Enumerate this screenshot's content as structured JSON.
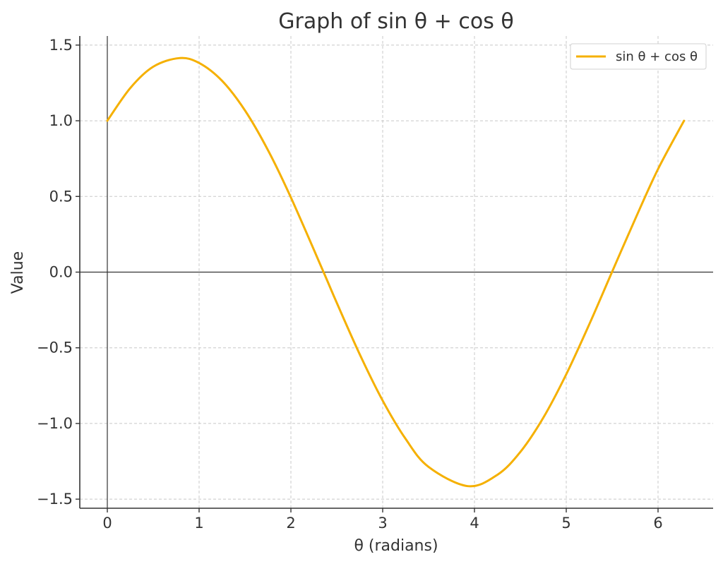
{
  "chart_data": {
    "type": "line",
    "title": "Graph of sin θ + cos θ",
    "xlabel": "θ (radians)",
    "ylabel": "Value",
    "xlim": [
      -0.3,
      6.6
    ],
    "ylim": [
      -1.56,
      1.56
    ],
    "xticks": [
      0,
      1,
      2,
      3,
      4,
      5,
      6
    ],
    "xtick_labels": [
      "0",
      "1",
      "2",
      "3",
      "4",
      "5",
      "6"
    ],
    "yticks": [
      -1.5,
      -1.0,
      -0.5,
      0.0,
      0.5,
      1.0,
      1.5
    ],
    "ytick_labels": [
      "−1.5",
      "−1.0",
      "−0.5",
      "0.0",
      "0.5",
      "1.0",
      "1.5"
    ],
    "grid": true,
    "grid_style": "dashed",
    "reference_lines": {
      "x": 0,
      "y": 0
    },
    "legend_position": "top-right",
    "series": [
      {
        "name": "sin θ + cos θ",
        "color": "#f5b000",
        "x": [
          0,
          0.25,
          0.5,
          0.785,
          1.0,
          1.25,
          1.5,
          1.75,
          2.0,
          2.356,
          2.5,
          2.75,
          3.0,
          3.25,
          3.5,
          3.927,
          4.25,
          4.5,
          4.75,
          5.0,
          5.25,
          5.498,
          5.75,
          6.0,
          6.283
        ],
        "y": [
          1.0,
          1.216,
          1.357,
          1.414,
          1.382,
          1.264,
          1.068,
          0.806,
          0.493,
          0.0,
          -0.203,
          -0.543,
          -0.849,
          -1.102,
          -1.287,
          -1.414,
          -1.339,
          -1.188,
          -0.962,
          -0.675,
          -0.346,
          0.0,
          0.349,
          0.681,
          1.0
        ]
      }
    ]
  }
}
